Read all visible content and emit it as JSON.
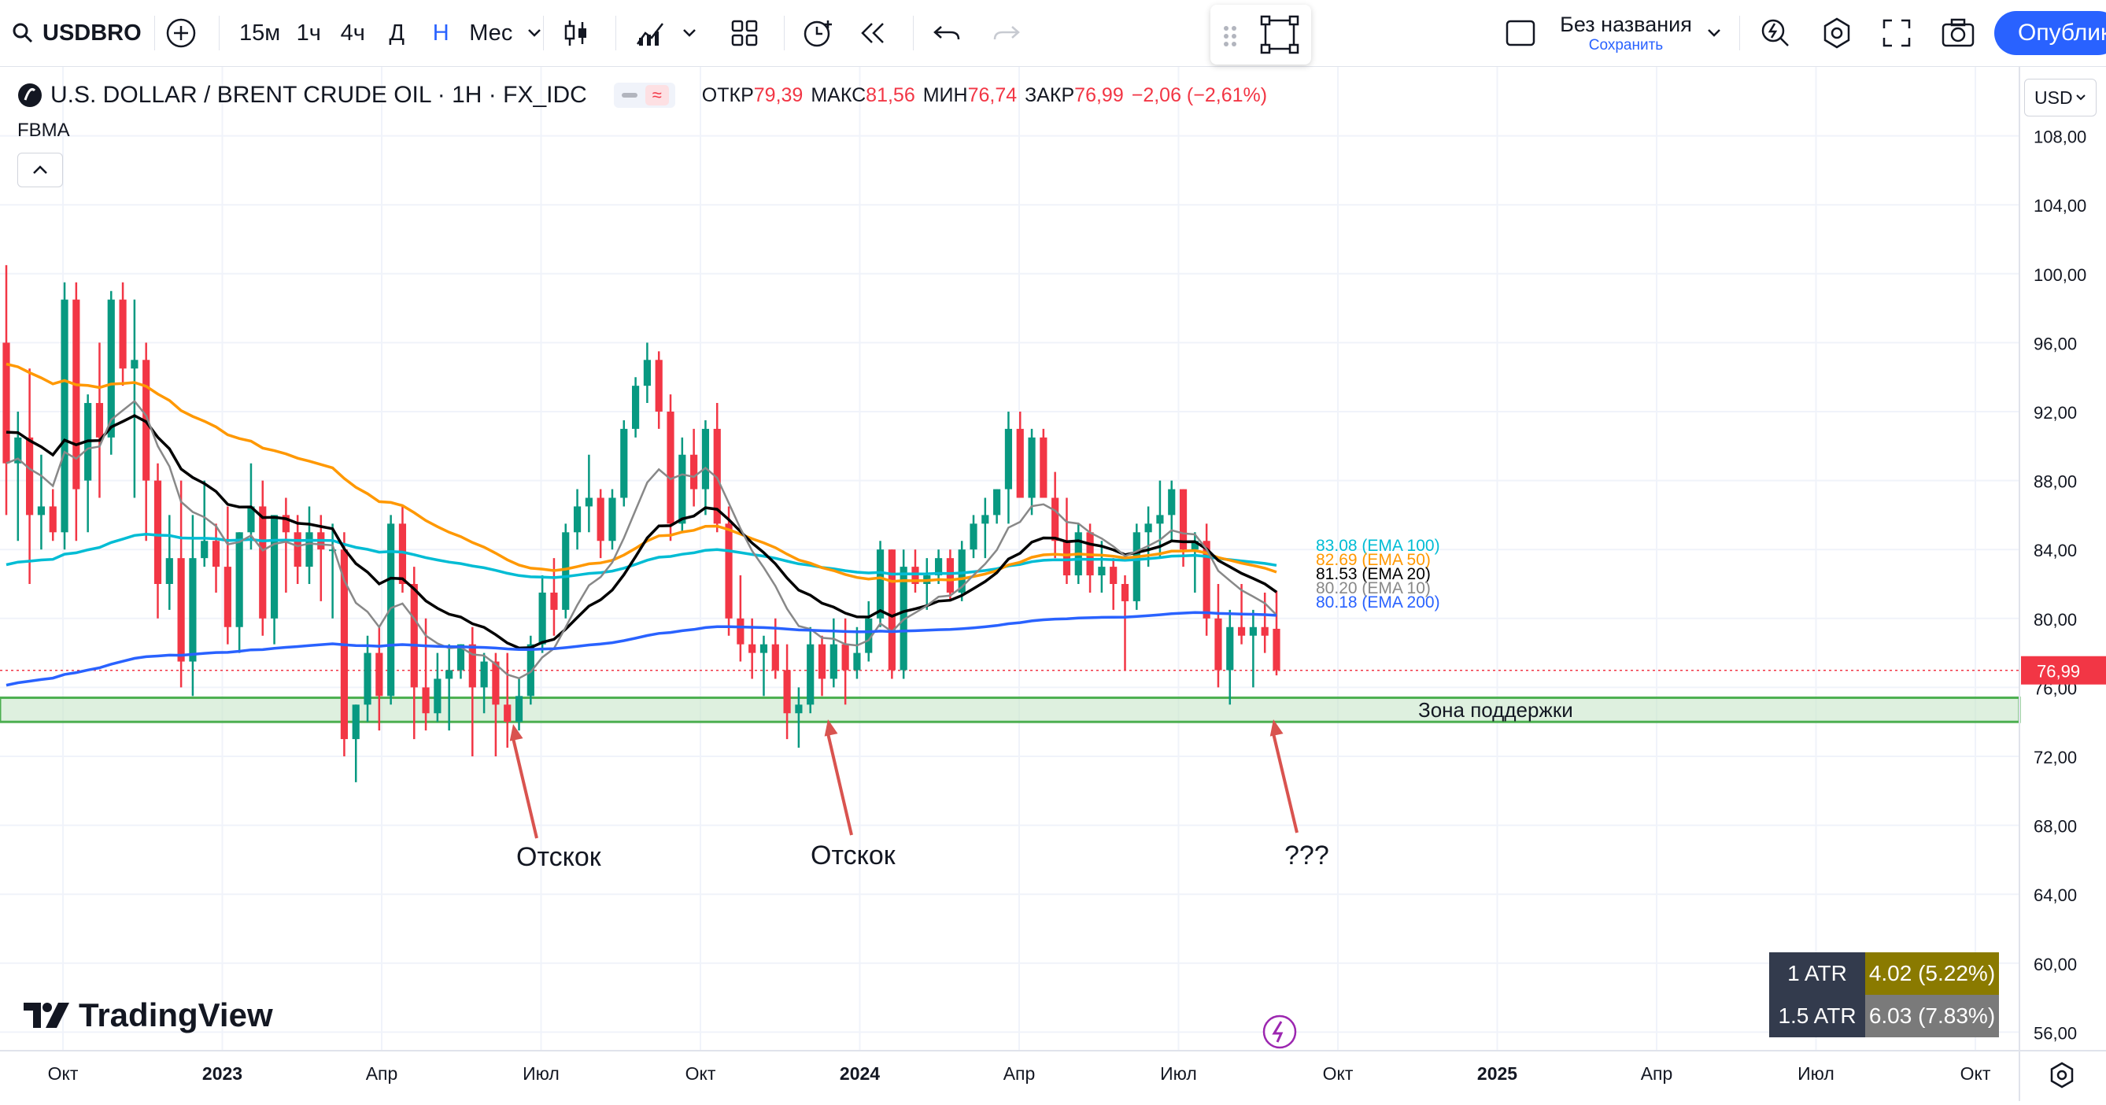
{
  "toolbar": {
    "symbol": "USDBRO",
    "intervals": [
      "15м",
      "1ч",
      "4ч",
      "Д",
      "Н",
      "Мес"
    ],
    "active_interval": "Н",
    "layout_name": "Без названия",
    "save_label": "Сохранить",
    "publish_label": "Опублико"
  },
  "legend": {
    "title": "U.S. DOLLAR / BRENT CRUDE OIL · 1H · FX_IDC",
    "open_label": "ОТКР",
    "open": "79,39",
    "high_label": "МАКС",
    "high": "81,56",
    "low_label": "МИН",
    "low": "76,74",
    "close_label": "ЗАКР",
    "close": "76,99",
    "change": "−2,06 (−2,61%)",
    "indicator": "FBMA",
    "currency": "USD"
  },
  "chart_data": {
    "type": "candlestick",
    "y_unit": "USD",
    "ylim": [
      52,
      112
    ],
    "y_ticks": [
      "108,00",
      "104,00",
      "100,00",
      "96,00",
      "92,00",
      "88,00",
      "84,00",
      "80,00",
      "76,00",
      "72,00",
      "68,00",
      "64,00",
      "60,00",
      "56,00"
    ],
    "x_ticks": [
      "Окт",
      "2023",
      "Апр",
      "Июл",
      "Окт",
      "2024",
      "Апр",
      "Июл",
      "Окт",
      "2025",
      "Апр",
      "Июл",
      "Окт"
    ],
    "last_price": "76,99",
    "candles_ohlc": [
      [
        96.0,
        100.5,
        86.0,
        89.0
      ],
      [
        89.0,
        92.0,
        84.5,
        90.5
      ],
      [
        90.5,
        94.5,
        82.0,
        86.0
      ],
      [
        86.0,
        89.5,
        84.0,
        86.5
      ],
      [
        86.5,
        87.5,
        84.5,
        85.0
      ],
      [
        85.0,
        99.5,
        84.0,
        98.5
      ],
      [
        98.5,
        99.5,
        84.5,
        87.5
      ],
      [
        88.0,
        93.0,
        85.0,
        92.5
      ],
      [
        92.5,
        96.0,
        87.0,
        90.5
      ],
      [
        90.5,
        99.0,
        89.5,
        98.5
      ],
      [
        98.5,
        99.5,
        93.5,
        94.5
      ],
      [
        94.5,
        98.5,
        87.0,
        95.0
      ],
      [
        95.0,
        96.0,
        84.5,
        88.0
      ],
      [
        88.0,
        89.0,
        80.0,
        82.0
      ],
      [
        82.0,
        86.0,
        80.5,
        83.5
      ],
      [
        83.5,
        88.0,
        76.0,
        77.5
      ],
      [
        77.5,
        86.0,
        75.5,
        83.5
      ],
      [
        83.5,
        88.0,
        83.0,
        84.5
      ],
      [
        84.5,
        85.5,
        81.5,
        83.0
      ],
      [
        83.0,
        86.5,
        78.5,
        79.5
      ],
      [
        79.5,
        85.0,
        78.0,
        85.0
      ],
      [
        85.0,
        89.0,
        84.0,
        86.5
      ],
      [
        86.5,
        88.0,
        79.0,
        80.0
      ],
      [
        80.0,
        85.5,
        78.5,
        86.0
      ],
      [
        86.0,
        87.0,
        81.5,
        85.0
      ],
      [
        85.0,
        86.0,
        82.0,
        83.0
      ],
      [
        83.0,
        86.5,
        82.0,
        85.0
      ],
      [
        85.0,
        86.0,
        81.0,
        84.0
      ],
      [
        84.0,
        85.5,
        80.0,
        84.0
      ],
      [
        84.0,
        85.0,
        72.0,
        73.0
      ],
      [
        73.0,
        75.0,
        70.5,
        75.0
      ],
      [
        75.0,
        79.0,
        74.0,
        78.0
      ],
      [
        78.0,
        79.5,
        73.5,
        75.5
      ],
      [
        75.5,
        86.0,
        75.0,
        85.5
      ],
      [
        85.5,
        86.5,
        81.5,
        82.0
      ],
      [
        82.0,
        83.0,
        73.0,
        76.0
      ],
      [
        76.0,
        80.0,
        73.5,
        74.5
      ],
      [
        74.5,
        78.0,
        74.0,
        76.5
      ],
      [
        76.5,
        78.5,
        73.5,
        77.0
      ],
      [
        77.0,
        78.5,
        76.5,
        78.5
      ],
      [
        78.5,
        79.5,
        72.0,
        76.0
      ],
      [
        76.0,
        78.0,
        74.5,
        77.5
      ],
      [
        77.5,
        78.0,
        72.0,
        75.0
      ],
      [
        75.0,
        78.0,
        72.5,
        74.0
      ],
      [
        74.0,
        76.5,
        73.5,
        75.5
      ],
      [
        75.5,
        79.0,
        75.0,
        78.5
      ],
      [
        78.5,
        82.5,
        78.0,
        81.5
      ],
      [
        81.5,
        83.5,
        79.0,
        80.5
      ],
      [
        80.5,
        85.5,
        80.0,
        85.0
      ],
      [
        85.0,
        87.5,
        84.0,
        86.5
      ],
      [
        86.5,
        89.5,
        85.0,
        87.0
      ],
      [
        87.0,
        87.5,
        83.5,
        84.5
      ],
      [
        84.5,
        87.5,
        84.0,
        87.0
      ],
      [
        87.0,
        91.5,
        86.5,
        91.0
      ],
      [
        91.0,
        94.0,
        90.5,
        93.5
      ],
      [
        93.5,
        96.0,
        92.5,
        95.0
      ],
      [
        95.0,
        95.5,
        91.0,
        92.0
      ],
      [
        92.0,
        93.0,
        84.5,
        85.5
      ],
      [
        85.5,
        90.5,
        85.0,
        89.5
      ],
      [
        89.5,
        91.0,
        86.5,
        87.5
      ],
      [
        87.5,
        91.5,
        86.0,
        91.0
      ],
      [
        91.0,
        92.5,
        85.0,
        85.5
      ],
      [
        85.5,
        86.5,
        79.0,
        80.0
      ],
      [
        80.0,
        82.5,
        77.5,
        78.5
      ],
      [
        78.5,
        80.0,
        76.5,
        78.0
      ],
      [
        78.0,
        79.0,
        75.5,
        78.5
      ],
      [
        78.5,
        80.0,
        76.5,
        77.0
      ],
      [
        77.0,
        78.5,
        73.0,
        74.5
      ],
      [
        74.5,
        76.0,
        72.5,
        75.0
      ],
      [
        75.0,
        79.5,
        74.5,
        78.5
      ],
      [
        78.5,
        79.0,
        75.5,
        76.5
      ],
      [
        76.5,
        80.0,
        76.0,
        78.5
      ],
      [
        78.5,
        80.0,
        75.0,
        77.0
      ],
      [
        77.0,
        79.5,
        76.5,
        78.0
      ],
      [
        78.0,
        81.0,
        77.5,
        80.0
      ],
      [
        80.0,
        84.5,
        79.5,
        84.0
      ],
      [
        84.0,
        84.0,
        76.5,
        77.0
      ],
      [
        77.0,
        84.0,
        76.5,
        83.0
      ],
      [
        83.0,
        84.0,
        81.5,
        82.0
      ],
      [
        82.0,
        83.5,
        80.5,
        82.5
      ],
      [
        82.5,
        84.0,
        82.0,
        83.5
      ],
      [
        83.5,
        84.0,
        81.0,
        81.5
      ],
      [
        81.5,
        84.5,
        81.0,
        84.0
      ],
      [
        84.0,
        86.0,
        83.5,
        85.5
      ],
      [
        85.5,
        87.0,
        83.5,
        86.0
      ],
      [
        86.0,
        87.5,
        85.5,
        87.5
      ],
      [
        87.5,
        92.0,
        85.5,
        91.0
      ],
      [
        91.0,
        92.0,
        87.0,
        87.0
      ],
      [
        87.0,
        91.0,
        86.0,
        90.5
      ],
      [
        90.5,
        91.0,
        87.0,
        87.0
      ],
      [
        87.0,
        88.5,
        83.5,
        84.5
      ],
      [
        84.5,
        87.0,
        82.0,
        82.5
      ],
      [
        82.5,
        85.5,
        82.0,
        85.0
      ],
      [
        85.0,
        85.5,
        81.5,
        82.5
      ],
      [
        82.5,
        84.5,
        81.5,
        83.0
      ],
      [
        83.0,
        83.5,
        80.5,
        82.0
      ],
      [
        82.0,
        82.5,
        77.0,
        81.0
      ],
      [
        81.0,
        85.5,
        80.5,
        85.0
      ],
      [
        85.0,
        86.5,
        83.0,
        85.5
      ],
      [
        85.5,
        88.0,
        83.5,
        86.0
      ],
      [
        86.0,
        88.0,
        84.5,
        87.5
      ],
      [
        87.5,
        87.5,
        83.0,
        84.0
      ],
      [
        84.0,
        85.0,
        81.5,
        84.5
      ],
      [
        84.5,
        85.5,
        79.0,
        80.0
      ],
      [
        80.0,
        82.0,
        76.0,
        77.0
      ],
      [
        77.0,
        80.5,
        75.0,
        79.5
      ],
      [
        79.5,
        82.0,
        78.5,
        79.0
      ],
      [
        79.0,
        80.5,
        76.0,
        79.5
      ],
      [
        79.5,
        81.5,
        78.0,
        79.0
      ],
      [
        79.4,
        81.6,
        76.7,
        77.0
      ]
    ],
    "overlays": [
      {
        "name": "EMA 100",
        "value": "83.08",
        "color": "#00bcd4"
      },
      {
        "name": "EMA 50",
        "value": "82.69",
        "color": "#ff9800"
      },
      {
        "name": "EMA 20",
        "value": "81.53",
        "color": "#000000"
      },
      {
        "name": "EMA 10",
        "value": "80.20",
        "color": "#888888"
      },
      {
        "name": "EMA 200",
        "value": "80.18",
        "color": "#2962ff"
      }
    ],
    "support_zone": {
      "label": "Зона поддержки",
      "range": [
        74.0,
        75.4
      ]
    },
    "annotations": [
      "Отскок",
      "Отскок",
      "???"
    ]
  },
  "atr": [
    {
      "label": "1 ATR",
      "value": "4.02 (5.22%)",
      "color": "#8a7a00"
    },
    {
      "label": "1.5 ATR",
      "value": "6.03 (7.83%)",
      "color": "#7a7a7a"
    }
  ],
  "branding": {
    "name": "TradingView"
  }
}
